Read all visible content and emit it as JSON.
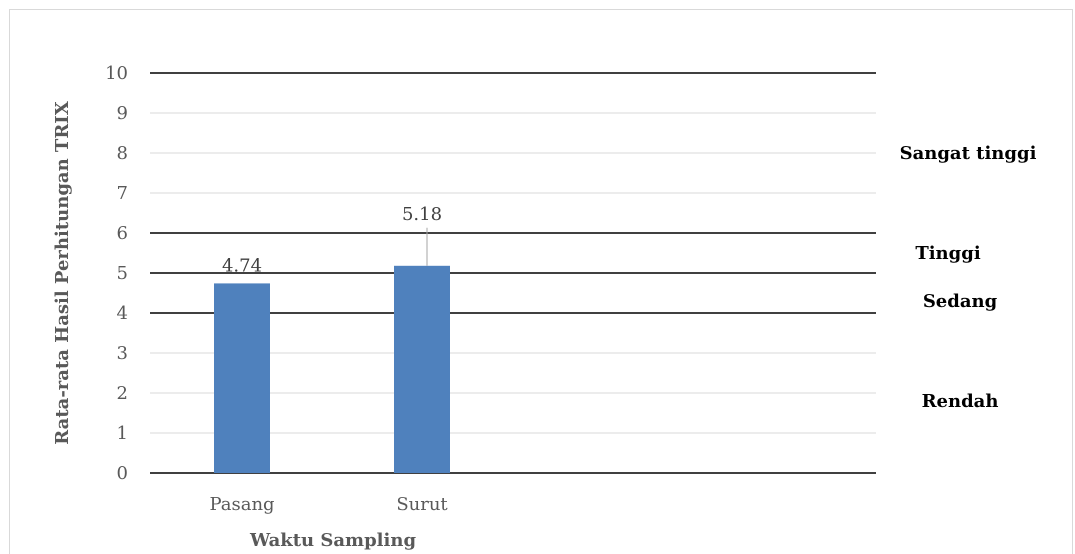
{
  "chart_data": {
    "type": "bar",
    "categories": [
      "Pasang",
      "Surut"
    ],
    "values": [
      4.74,
      5.18
    ],
    "data_labels": [
      "4.74",
      "5.18"
    ],
    "xlabel": "Waktu Sampling",
    "ylabel": "Rata-rata Hasil Perhitungan TRIX",
    "ylim": [
      0,
      10
    ],
    "yticks": [
      0,
      1,
      2,
      3,
      4,
      5,
      6,
      7,
      8,
      9,
      10
    ],
    "grid": true,
    "bar_color": "#4f81bd",
    "threshold_lines": [
      4,
      5,
      6,
      10
    ],
    "bands": [
      {
        "label": "Sangat tinggi",
        "center": 8
      },
      {
        "label": "Tinggi",
        "center": 5.5
      },
      {
        "label": "Sedang",
        "center": 4.3
      },
      {
        "label": "Rendah",
        "center": 1.8
      }
    ]
  }
}
